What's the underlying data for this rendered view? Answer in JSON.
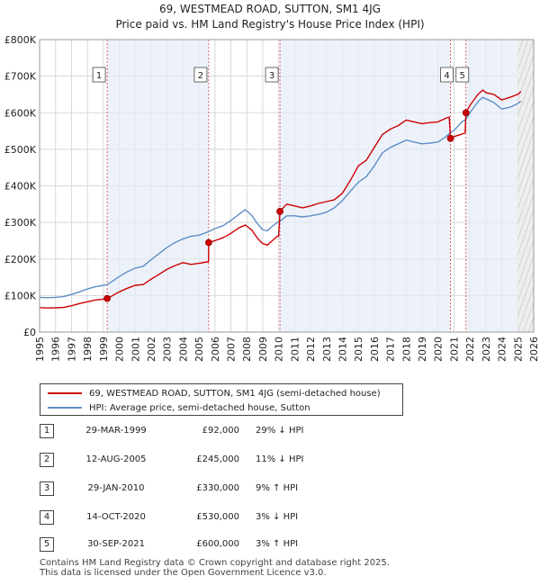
{
  "title_line1": "69, WESTMEAD ROAD, SUTTON, SM1 4JG",
  "title_line2": "Price paid vs. HM Land Registry's House Price Index (HPI)",
  "chart_data": {
    "type": "line",
    "title": "69, WESTMEAD ROAD, SUTTON, SM1 4JG — Price paid vs. HM Land Registry's House Price Index (HPI)",
    "xlim": [
      1995,
      2026
    ],
    "ylim": [
      0,
      800000
    ],
    "x_ticks": [
      "1995",
      "1996",
      "1997",
      "1998",
      "1999",
      "2000",
      "2001",
      "2002",
      "2003",
      "2004",
      "2005",
      "2006",
      "2007",
      "2008",
      "2009",
      "2010",
      "2011",
      "2012",
      "2013",
      "2014",
      "2015",
      "2016",
      "2017",
      "2018",
      "2019",
      "2020",
      "2021",
      "2022",
      "2023",
      "2024",
      "2025",
      "2026"
    ],
    "y_ticks": [
      {
        "value": 0,
        "label": "£0"
      },
      {
        "value": 100000,
        "label": "£100K"
      },
      {
        "value": 200000,
        "label": "£200K"
      },
      {
        "value": 300000,
        "label": "£300K"
      },
      {
        "value": 400000,
        "label": "£400K"
      },
      {
        "value": 500000,
        "label": "£500K"
      },
      {
        "value": 600000,
        "label": "£600K"
      },
      {
        "value": 700000,
        "label": "£700K"
      },
      {
        "value": 800000,
        "label": "£800K"
      }
    ],
    "forecast_from": 2025.0,
    "series": [
      {
        "name": "69, WESTMEAD ROAD, SUTTON, SM1 4JG (semi-detached house)",
        "color": "#cc0000",
        "points": [
          [
            1995.0,
            67000
          ],
          [
            1995.5,
            66000
          ],
          [
            1996.0,
            66500
          ],
          [
            1996.5,
            67500
          ],
          [
            1997.0,
            72000
          ],
          [
            1997.5,
            78000
          ],
          [
            1998.0,
            83000
          ],
          [
            1998.5,
            88000
          ],
          [
            1999.0,
            90000
          ],
          [
            1999.24,
            92000
          ],
          [
            1999.5,
            98000
          ],
          [
            2000.0,
            110000
          ],
          [
            2000.5,
            120000
          ],
          [
            2001.0,
            128000
          ],
          [
            2001.5,
            130000
          ],
          [
            2002.0,
            145000
          ],
          [
            2002.5,
            158000
          ],
          [
            2003.0,
            172000
          ],
          [
            2003.5,
            182000
          ],
          [
            2004.0,
            190000
          ],
          [
            2004.5,
            185000
          ],
          [
            2005.0,
            188000
          ],
          [
            2005.5,
            192000
          ],
          [
            2005.6,
            192000
          ],
          [
            2005.61,
            245000
          ],
          [
            2006.0,
            250000
          ],
          [
            2006.5,
            258000
          ],
          [
            2007.0,
            270000
          ],
          [
            2007.5,
            285000
          ],
          [
            2007.9,
            293000
          ],
          [
            2008.3,
            280000
          ],
          [
            2008.7,
            255000
          ],
          [
            2009.0,
            242000
          ],
          [
            2009.3,
            238000
          ],
          [
            2009.6,
            250000
          ],
          [
            2009.9,
            262000
          ],
          [
            2010.0,
            262000
          ],
          [
            2010.08,
            330000
          ],
          [
            2010.5,
            350000
          ],
          [
            2011.0,
            345000
          ],
          [
            2011.5,
            340000
          ],
          [
            2012.0,
            345000
          ],
          [
            2012.5,
            352000
          ],
          [
            2013.0,
            357000
          ],
          [
            2013.5,
            362000
          ],
          [
            2014.0,
            380000
          ],
          [
            2014.5,
            415000
          ],
          [
            2015.0,
            455000
          ],
          [
            2015.5,
            470000
          ],
          [
            2016.0,
            505000
          ],
          [
            2016.5,
            540000
          ],
          [
            2017.0,
            555000
          ],
          [
            2017.5,
            565000
          ],
          [
            2018.0,
            580000
          ],
          [
            2018.5,
            575000
          ],
          [
            2019.0,
            570000
          ],
          [
            2019.5,
            573000
          ],
          [
            2020.0,
            575000
          ],
          [
            2020.5,
            585000
          ],
          [
            2020.7,
            588000
          ],
          [
            2020.78,
            530000
          ],
          [
            2021.0,
            535000
          ],
          [
            2021.4,
            540000
          ],
          [
            2021.7,
            545000
          ],
          [
            2021.75,
            600000
          ],
          [
            2022.0,
            620000
          ],
          [
            2022.5,
            650000
          ],
          [
            2022.8,
            662000
          ],
          [
            2023.0,
            655000
          ],
          [
            2023.5,
            650000
          ],
          [
            2024.0,
            635000
          ],
          [
            2024.5,
            642000
          ],
          [
            2025.0,
            650000
          ],
          [
            2025.2,
            658000
          ]
        ]
      },
      {
        "name": "HPI: Average price, semi-detached house, Sutton",
        "color": "#5f8fc7",
        "points": [
          [
            1995.0,
            95000
          ],
          [
            1995.5,
            94000
          ],
          [
            1996.0,
            95000
          ],
          [
            1996.5,
            97000
          ],
          [
            1997.0,
            103000
          ],
          [
            1997.5,
            110000
          ],
          [
            1998.0,
            118000
          ],
          [
            1998.5,
            124000
          ],
          [
            1999.0,
            128000
          ],
          [
            1999.24,
            130000
          ],
          [
            1999.5,
            137000
          ],
          [
            2000.0,
            152000
          ],
          [
            2000.5,
            165000
          ],
          [
            2001.0,
            175000
          ],
          [
            2001.5,
            180000
          ],
          [
            2002.0,
            198000
          ],
          [
            2002.5,
            215000
          ],
          [
            2003.0,
            232000
          ],
          [
            2003.5,
            245000
          ],
          [
            2004.0,
            255000
          ],
          [
            2004.5,
            262000
          ],
          [
            2005.0,
            265000
          ],
          [
            2005.61,
            275000
          ],
          [
            2006.0,
            283000
          ],
          [
            2006.5,
            291000
          ],
          [
            2007.0,
            305000
          ],
          [
            2007.5,
            322000
          ],
          [
            2007.9,
            335000
          ],
          [
            2008.3,
            320000
          ],
          [
            2008.7,
            295000
          ],
          [
            2009.0,
            280000
          ],
          [
            2009.3,
            277000
          ],
          [
            2009.6,
            290000
          ],
          [
            2010.0,
            302000
          ],
          [
            2010.08,
            303000
          ],
          [
            2010.5,
            318000
          ],
          [
            2011.0,
            318000
          ],
          [
            2011.5,
            315000
          ],
          [
            2012.0,
            318000
          ],
          [
            2012.5,
            322000
          ],
          [
            2013.0,
            328000
          ],
          [
            2013.5,
            340000
          ],
          [
            2014.0,
            360000
          ],
          [
            2014.5,
            385000
          ],
          [
            2015.0,
            410000
          ],
          [
            2015.5,
            425000
          ],
          [
            2016.0,
            455000
          ],
          [
            2016.5,
            490000
          ],
          [
            2017.0,
            505000
          ],
          [
            2017.5,
            515000
          ],
          [
            2018.0,
            525000
          ],
          [
            2018.5,
            520000
          ],
          [
            2019.0,
            515000
          ],
          [
            2019.5,
            517000
          ],
          [
            2020.0,
            520000
          ],
          [
            2020.5,
            535000
          ],
          [
            2020.78,
            546000
          ],
          [
            2021.0,
            552000
          ],
          [
            2021.5,
            575000
          ],
          [
            2021.75,
            582000
          ],
          [
            2022.0,
            600000
          ],
          [
            2022.5,
            630000
          ],
          [
            2022.8,
            642000
          ],
          [
            2023.0,
            638000
          ],
          [
            2023.5,
            628000
          ],
          [
            2024.0,
            610000
          ],
          [
            2024.5,
            615000
          ],
          [
            2025.0,
            625000
          ],
          [
            2025.2,
            632000
          ]
        ]
      }
    ],
    "sales": [
      {
        "id": "1",
        "x": 1999.24,
        "price": 92000
      },
      {
        "id": "2",
        "x": 2005.61,
        "price": 245000
      },
      {
        "id": "3",
        "x": 2010.08,
        "price": 330000
      },
      {
        "id": "4",
        "x": 2020.78,
        "price": 530000
      },
      {
        "id": "5",
        "x": 2021.75,
        "price": 600000
      }
    ]
  },
  "legend": {
    "property_label": "69, WESTMEAD ROAD, SUTTON, SM1 4JG (semi-detached house)",
    "hpi_label": "HPI: Average price, semi-detached house, Sutton",
    "property_color": "#cc0000",
    "hpi_color": "#5f8fc7"
  },
  "sales_table": [
    {
      "num": "1",
      "date": "29-MAR-1999",
      "price": "£92,000",
      "hpi": "29% ↓ HPI"
    },
    {
      "num": "2",
      "date": "12-AUG-2005",
      "price": "£245,000",
      "hpi": "11% ↓ HPI"
    },
    {
      "num": "3",
      "date": "29-JAN-2010",
      "price": "£330,000",
      "hpi": "9% ↑ HPI"
    },
    {
      "num": "4",
      "date": "14-OCT-2020",
      "price": "£530,000",
      "hpi": "3% ↓ HPI"
    },
    {
      "num": "5",
      "date": "30-SEP-2021",
      "price": "£600,000",
      "hpi": "3% ↑ HPI"
    }
  ],
  "footer": {
    "line1": "Contains HM Land Registry data © Crown copyright and database right 2025.",
    "line2": "This data is licensed under the Open Government Licence v3.0."
  }
}
